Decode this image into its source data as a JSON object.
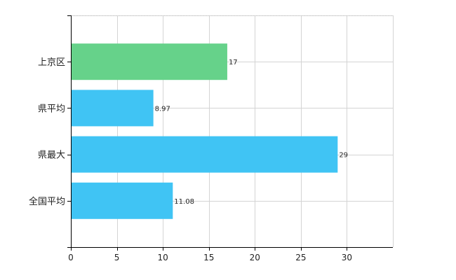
{
  "chart_data": {
    "type": "bar",
    "orientation": "horizontal",
    "categories": [
      "上京区",
      "県平均",
      "県最大",
      "全国平均"
    ],
    "values": [
      17,
      8.97,
      29,
      11.08
    ],
    "value_labels": [
      "17",
      "8.97",
      "29",
      "11.08"
    ],
    "xlim": [
      0,
      35
    ],
    "xticks": [
      0,
      5,
      10,
      15,
      20,
      25,
      30
    ],
    "grid": true,
    "colors": {
      "highlight": "#66d28a",
      "default": "#40c4f4"
    },
    "highlight_index": 0
  }
}
